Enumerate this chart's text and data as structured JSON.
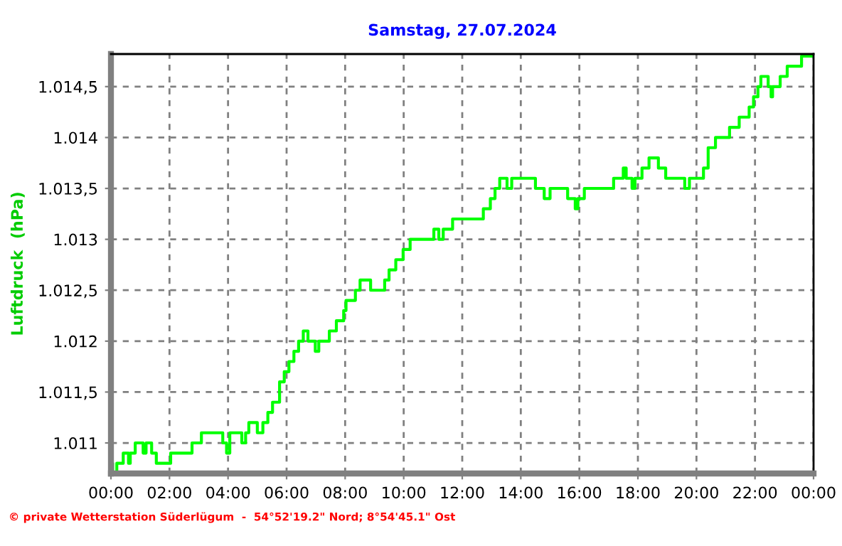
{
  "chart_data": {
    "type": "step",
    "title": "Samstag, 27.07.2024",
    "ylabel": "Luftdruck  (hPa)",
    "annotations": [
      "© private Wetterstation Süderlügum  -  54°52'19.2\" Nord; 8°54'45.1\" Ost"
    ],
    "series": [
      {
        "color": "#00ff00",
        "x": [
          0,
          0.06,
          0.2,
          0.42,
          0.6,
          0.66,
          0.83,
          1.1,
          1.2,
          1.39,
          1.55,
          1.72,
          2.04,
          2.28,
          2.77,
          3.09,
          3.82,
          3.95,
          4.06,
          4.47,
          4.6,
          4.71,
          5.0,
          5.19,
          5.36,
          5.52,
          5.76,
          5.92,
          6.08,
          6.25,
          6.41,
          6.57,
          6.73,
          6.98,
          7.1,
          7.22,
          7.46,
          7.7,
          7.95,
          8.03,
          8.35,
          8.51,
          8.87,
          9.35,
          9.5,
          9.73,
          9.98,
          10.22,
          11.03,
          11.2,
          11.35,
          11.67,
          12.56,
          12.72,
          12.96,
          13.12,
          13.28,
          13.53,
          13.69,
          14.17,
          14.5,
          14.8,
          15.0,
          15.6,
          15.86,
          15.95,
          16.17,
          16.6,
          17.17,
          17.5,
          17.6,
          17.8,
          17.9,
          18.14,
          18.38,
          18.7,
          18.95,
          19.6,
          19.76,
          20.24,
          20.4,
          20.65,
          21.13,
          21.46,
          21.8,
          21.95,
          22.1,
          22.2,
          22.45,
          22.55,
          22.6,
          22.86,
          23.1,
          23.59,
          24
        ],
        "values": [
          1010.8,
          1010.7,
          1010.8,
          1010.9,
          1010.8,
          1010.9,
          1011.0,
          1010.9,
          1011.0,
          1010.9,
          1010.8,
          1010.8,
          1010.9,
          1010.9,
          1011.0,
          1011.1,
          1011.0,
          1010.9,
          1011.1,
          1011.0,
          1011.1,
          1011.2,
          1011.1,
          1011.2,
          1011.3,
          1011.4,
          1011.6,
          1011.7,
          1011.8,
          1011.9,
          1012.0,
          1012.1,
          1012.0,
          1011.9,
          1012.0,
          1012.0,
          1012.1,
          1012.2,
          1012.3,
          1012.4,
          1012.5,
          1012.6,
          1012.5,
          1012.6,
          1012.7,
          1012.8,
          1012.9,
          1013.0,
          1013.1,
          1013.0,
          1013.1,
          1013.2,
          1013.2,
          1013.3,
          1013.4,
          1013.5,
          1013.6,
          1013.5,
          1013.6,
          1013.6,
          1013.5,
          1013.4,
          1013.5,
          1013.4,
          1013.3,
          1013.4,
          1013.5,
          1013.5,
          1013.6,
          1013.7,
          1013.6,
          1013.5,
          1013.6,
          1013.7,
          1013.8,
          1013.7,
          1013.6,
          1013.5,
          1013.6,
          1013.7,
          1013.9,
          1014.0,
          1014.1,
          1014.2,
          1014.3,
          1014.4,
          1014.5,
          1014.6,
          1014.5,
          1014.4,
          1014.5,
          1014.6,
          1014.7,
          1014.8,
          1014.8
        ]
      }
    ],
    "xlim": [
      0,
      24
    ],
    "xticks": [
      {
        "value": 0,
        "label": "00:00"
      },
      {
        "value": 2,
        "label": "02:00"
      },
      {
        "value": 4,
        "label": "04:00"
      },
      {
        "value": 6,
        "label": "06:00"
      },
      {
        "value": 8,
        "label": "08:00"
      },
      {
        "value": 10,
        "label": "10:00"
      },
      {
        "value": 12,
        "label": "12:00"
      },
      {
        "value": 14,
        "label": "14:00"
      },
      {
        "value": 16,
        "label": "16:00"
      },
      {
        "value": 18,
        "label": "18:00"
      },
      {
        "value": 20,
        "label": "20:00"
      },
      {
        "value": 22,
        "label": "22:00"
      },
      {
        "value": 24,
        "label": "00:00"
      }
    ],
    "ylim": [
      1010.7,
      1014.82
    ],
    "yticks": [
      {
        "value": 1011,
        "label": "1.011"
      },
      {
        "value": 1011.5,
        "label": "1.011,5"
      },
      {
        "value": 1012,
        "label": "1.012"
      },
      {
        "value": 1012.5,
        "label": "1.012,5"
      },
      {
        "value": 1013,
        "label": "1.013"
      },
      {
        "value": 1013.5,
        "label": "1.013,5"
      },
      {
        "value": 1014,
        "label": "1.014"
      },
      {
        "value": 1014.5,
        "label": "1.014,5"
      }
    ],
    "grid": true,
    "line_style": "solid"
  }
}
